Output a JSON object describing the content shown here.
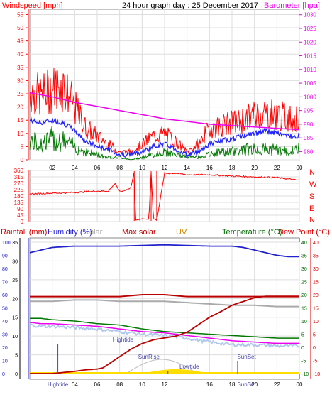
{
  "header": {
    "left_label": "Windspeed [mph]",
    "title": "24 hour graph day : 25 December 2017",
    "right_label": "Barometer [hpa]"
  },
  "middle": {
    "compass": [
      "N",
      "W",
      "S",
      "E",
      "N"
    ]
  },
  "bottom_header": {
    "rain": "Rainfall (mm)",
    "humidity": "Humidity (%)",
    "solar_partial": "olar",
    "max_solar": "Max solar",
    "uv": "UV",
    "temperature": "Temperature (°C)",
    "dew_point": "Dew Point (°C)"
  },
  "colors": {
    "wind": "#ff0000",
    "wind_dark": "#cc0000",
    "barometer": "#ee00ee",
    "gust": "#2222ff",
    "green": "#007700",
    "humidity": "#2222cc",
    "max_solar": "#bb0000",
    "uv": "#cc8800",
    "temperature": "#006600",
    "dew": "#dd0000",
    "grid": "#dddddd",
    "sun": "#ffdd00"
  },
  "chart_data": [
    {
      "type": "line",
      "title": "24 hour graph day : 25 December 2017",
      "x_ticks": [
        "02",
        "04",
        "06",
        "08",
        "10",
        "12",
        "14",
        "16",
        "18",
        "20",
        "22",
        "00"
      ],
      "left_axis": {
        "label": "Windspeed [mph]",
        "ticks": [
          0,
          5,
          10,
          15,
          20,
          25,
          30,
          35,
          40,
          45,
          50,
          55
        ],
        "range": [
          0,
          57
        ]
      },
      "right_axis": {
        "label": "Barometer [hpa]",
        "ticks": [
          980,
          985,
          990,
          995,
          1000,
          1005,
          1010,
          1015,
          1020,
          1025,
          1030
        ],
        "range": [
          977,
          1032
        ]
      },
      "series": [
        {
          "key": "gust",
          "x": [
            0,
            1,
            2,
            3,
            4,
            5,
            6,
            7,
            8,
            9,
            10,
            11,
            12,
            13,
            14,
            15,
            16,
            17,
            18,
            19,
            20,
            21,
            22,
            23,
            24
          ],
          "values": [
            26,
            24,
            27,
            28,
            20,
            12,
            9,
            6,
            3,
            3,
            6,
            9,
            10,
            7,
            3,
            6,
            12,
            13,
            14,
            15,
            17,
            18,
            17,
            16,
            15
          ]
        },
        {
          "key": "avg",
          "x": [
            0,
            1,
            2,
            3,
            4,
            5,
            6,
            7,
            8,
            9,
            10,
            11,
            12,
            13,
            14,
            15,
            16,
            17,
            18,
            19,
            20,
            21,
            22,
            23,
            24
          ],
          "values": [
            15,
            14,
            15,
            14,
            11,
            7,
            5,
            4,
            2,
            2,
            3,
            5,
            6,
            4,
            2,
            3,
            6,
            7,
            8,
            9,
            10,
            11,
            10,
            9,
            9
          ]
        },
        {
          "key": "low",
          "x": [
            0,
            1,
            2,
            3,
            4,
            5,
            6,
            7,
            8,
            9,
            10,
            11,
            12,
            13,
            14,
            15,
            16,
            17,
            18,
            19,
            20,
            21,
            22,
            23,
            24
          ],
          "values": [
            7,
            6,
            8,
            7,
            5,
            3,
            2,
            1,
            1,
            0,
            1,
            2,
            3,
            2,
            1,
            1,
            2,
            3,
            3,
            4,
            4,
            4,
            4,
            3,
            4
          ]
        },
        {
          "key": "barometer",
          "x": [
            0,
            2,
            4,
            6,
            8,
            10,
            12,
            14,
            16,
            18,
            20,
            22,
            24
          ],
          "values": [
            1001.5,
            1000,
            998,
            996.5,
            995,
            993.5,
            992,
            991,
            990,
            989.5,
            989,
            988.5,
            988
          ]
        }
      ]
    },
    {
      "type": "line",
      "left_axis": {
        "ticks": [
          0,
          45,
          90,
          135,
          180,
          225,
          270,
          315,
          360
        ],
        "range": [
          0,
          360
        ]
      },
      "series": [
        {
          "key": "wind_direction",
          "x": [
            0,
            2,
            4,
            6,
            7,
            7.6,
            8,
            8.5,
            9,
            9.3,
            9.4,
            9.8,
            10,
            10.6,
            10.8,
            11,
            11.3,
            12,
            13,
            14,
            16,
            18,
            20,
            22,
            24
          ],
          "values": [
            195,
            200,
            205,
            215,
            215,
            270,
            210,
            220,
            240,
            350,
            10,
            15,
            20,
            15,
            350,
            20,
            10,
            340,
            340,
            330,
            330,
            320,
            315,
            310,
            290
          ]
        }
      ]
    },
    {
      "type": "line",
      "left_axis_rain": {
        "label": "Rainfall (mm)",
        "ticks": [
          0,
          5,
          10,
          15,
          20,
          25,
          30,
          35
        ],
        "range": [
          0,
          35
        ]
      },
      "left_axis_humidity": {
        "label": "Humidity (%)",
        "ticks": [
          0,
          10,
          20,
          30,
          40,
          50,
          60,
          70,
          80,
          90,
          100
        ],
        "range": [
          0,
          100
        ]
      },
      "right_axis": {
        "label": "Temperature (°C)",
        "ticks": [
          -10,
          -5,
          0,
          5,
          10,
          15,
          20,
          25,
          30,
          35,
          40
        ],
        "range": [
          -10,
          40
        ]
      },
      "series": [
        {
          "key": "humidity",
          "x": [
            0,
            1,
            2,
            4,
            8,
            12,
            16,
            18,
            19,
            20,
            21,
            22,
            23,
            24
          ],
          "values": [
            92,
            94,
            96,
            97,
            97,
            98,
            97,
            97,
            96,
            94,
            92,
            90,
            89,
            89
          ]
        },
        {
          "key": "rainfall",
          "x": [
            0,
            1,
            2,
            3,
            4,
            5,
            6,
            6.5,
            7,
            7.5,
            8,
            9,
            10,
            11,
            12,
            13,
            14,
            15,
            16,
            17,
            18,
            19,
            20,
            21,
            22,
            23,
            24
          ],
          "values": [
            0,
            0,
            0,
            0.3,
            0.6,
            1,
            1.2,
            1.5,
            2.5,
            3.5,
            4.5,
            6.5,
            8,
            9,
            9.5,
            10,
            11,
            13,
            15,
            16.5,
            18.2,
            19.2,
            20.2,
            20.6,
            20.6,
            20.6,
            20.6
          ]
        },
        {
          "key": "max_solar",
          "x": [
            0,
            2,
            4,
            6,
            8,
            10,
            12,
            14,
            16,
            18,
            20,
            22,
            24
          ],
          "values": [
            20.5,
            20.5,
            20.5,
            20.5,
            20.5,
            21,
            21,
            20.5,
            20.5,
            20.5,
            20.5,
            20.5,
            20.5
          ]
        },
        {
          "key": "grey_temp",
          "x": [
            0,
            2,
            4,
            6,
            8,
            12,
            14,
            16,
            18,
            20,
            22,
            24
          ],
          "values": [
            17.5,
            17.5,
            18,
            18,
            17.5,
            17.5,
            17,
            16.5,
            16,
            16,
            15.5,
            15.5
          ]
        },
        {
          "key": "temperature",
          "x": [
            0,
            1,
            2,
            4,
            6,
            8,
            10,
            12,
            14,
            16,
            18,
            20,
            22,
            24
          ],
          "values": [
            11,
            11,
            10.5,
            10,
            9,
            8.5,
            7,
            6,
            5.5,
            5,
            4.5,
            4,
            3.5,
            3.5
          ]
        },
        {
          "key": "dew_point",
          "x": [
            0,
            1,
            2,
            4,
            6,
            8,
            10,
            12,
            14,
            16,
            18,
            20,
            22,
            24
          ],
          "values": [
            9.5,
            9,
            9,
            8.5,
            8,
            7,
            6,
            5.5,
            4.5,
            3.5,
            2.5,
            2,
            1.5,
            1.5
          ]
        },
        {
          "key": "light_blue",
          "x": [
            0,
            1,
            2,
            4,
            6,
            8,
            10,
            12,
            14,
            16,
            18,
            20,
            22,
            24
          ],
          "values": [
            8.5,
            8,
            8,
            7.5,
            7,
            6,
            5,
            4.5,
            3.5,
            2,
            1,
            1,
            0.5,
            0.5
          ]
        }
      ],
      "annotations": [
        "Hightide",
        "SunRise",
        "Lowtide",
        "SunSet"
      ],
      "bottom_labels": [
        "Hightide",
        "SunSet"
      ]
    }
  ]
}
